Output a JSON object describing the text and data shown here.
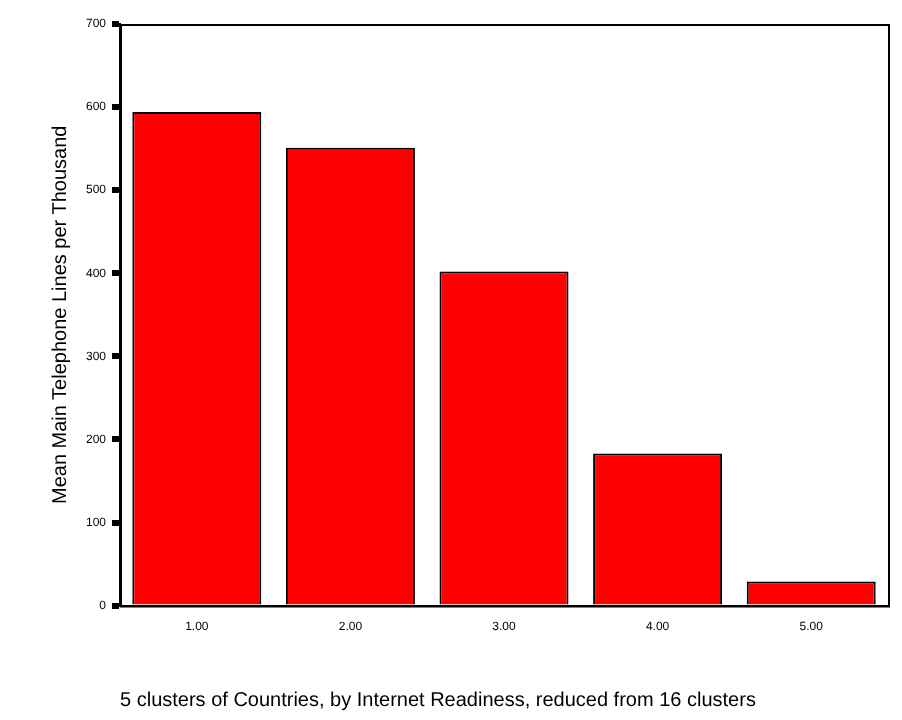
{
  "chart_data": {
    "type": "bar",
    "xlabel": "5 clusters of Countries, by Internet Readiness, reduced from 16 clusters",
    "ylabel": "Mean Main Telephone Lines per Thousand",
    "categories": [
      "1.00",
      "2.00",
      "3.00",
      "4.00",
      "5.00"
    ],
    "values": [
      594,
      551,
      402,
      183,
      29
    ],
    "color": "#ff0000",
    "ylim": [
      0,
      700
    ],
    "yticks": [
      0,
      100,
      200,
      300,
      400,
      500,
      600,
      700
    ],
    "grid": false,
    "legend": false
  }
}
